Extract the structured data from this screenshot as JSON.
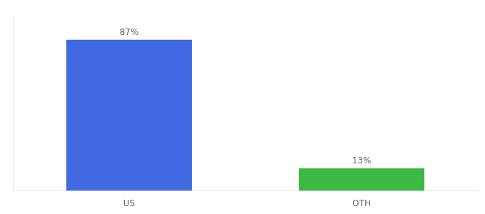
{
  "chart_data": {
    "type": "bar",
    "categories": [
      "US",
      "OTH"
    ],
    "values": [
      87,
      13
    ],
    "value_labels": [
      "87%",
      "13%"
    ],
    "data_labels": true,
    "colors": [
      "#4169E1",
      "#3CB943"
    ],
    "ylim": [
      0,
      100
    ],
    "grid": false,
    "tick_labels": "x"
  }
}
